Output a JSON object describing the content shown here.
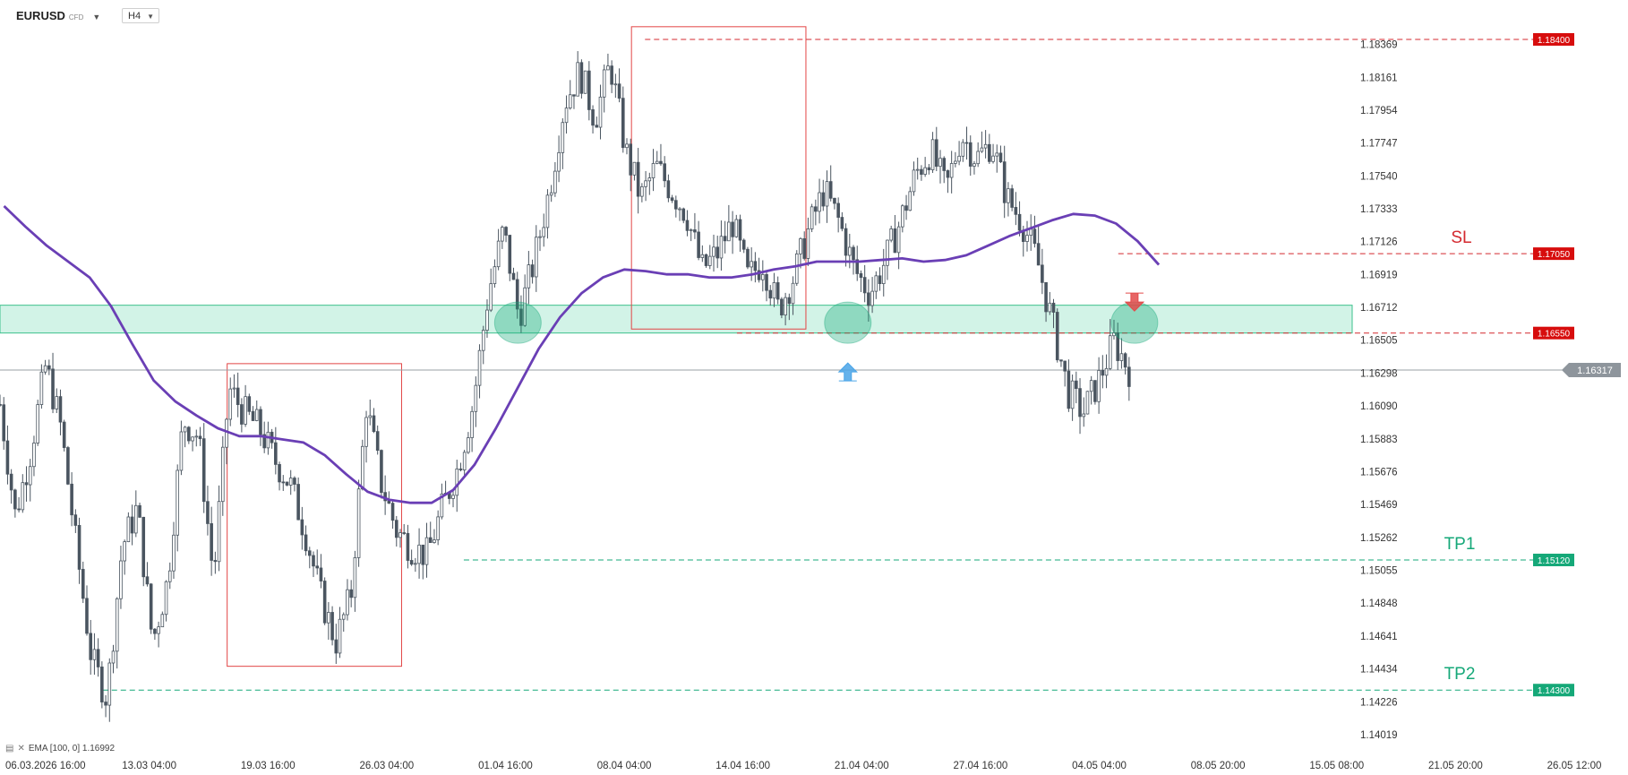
{
  "header": {
    "symbol": "EURUSD",
    "symbol_suffix": "CFD",
    "timeframe": "H4",
    "dropdown_icon": "chevron-down-icon"
  },
  "legend": {
    "icons": [
      "indicator-settings-icon",
      "close-icon"
    ],
    "text": "EMA [100, 0] 1.16992"
  },
  "colors": {
    "ema": "#6a3fb5",
    "candle": "#4a5560",
    "zone_fill": "#bfeedd",
    "zone_border": "#3cc08c",
    "resistance": "#d4292f",
    "target": "#15a878",
    "box": "#e24545",
    "current_price": "#9aa0a6",
    "buy_arrow": "#4aa5e8",
    "sell_arrow": "#e34a4a"
  },
  "chart_data": {
    "type": "candlestick",
    "instrument": "EURUSD",
    "timeframe": "H4",
    "y_ticks": [
      1.18369,
      1.18161,
      1.17954,
      1.17747,
      1.1754,
      1.17333,
      1.17126,
      1.16919,
      1.16712,
      1.16505,
      1.16298,
      1.1609,
      1.15883,
      1.15676,
      1.15469,
      1.15262,
      1.15055,
      1.14848,
      1.14641,
      1.14434,
      1.14226,
      1.14019
    ],
    "x_ticks": [
      "06.03.2026 16:00",
      "13.03 04:00",
      "19.03 16:00",
      "26.03 04:00",
      "01.04 16:00",
      "08.04 04:00",
      "14.04 16:00",
      "21.04 04:00",
      "27.04 16:00",
      "04.05 04:00",
      "08.05 20:00",
      "15.05 08:00",
      "21.05 20:00",
      "26.05 12:00"
    ],
    "ylim": [
      1.14019,
      1.184
    ],
    "current_price": 1.16317,
    "support_zone": [
      1.1655,
      1.1668
    ],
    "levels": [
      {
        "label": "",
        "price": 1.184,
        "kind": "resistance"
      },
      {
        "label": "SL",
        "price": 1.1705,
        "kind": "stop"
      },
      {
        "label": "",
        "price": 1.1655,
        "kind": "resistance"
      },
      {
        "label": "TP1",
        "price": 1.1512,
        "kind": "target"
      },
      {
        "label": "TP2",
        "price": 1.143,
        "kind": "target"
      }
    ],
    "price_tags": [
      "1.18400",
      "1.17050",
      "1.16550",
      "1.15120",
      "1.14300"
    ],
    "current_price_tag": "1.16317",
    "ema_name": "EMA [100, 0]",
    "ema_value": 1.16992,
    "ema": [
      1.1735,
      1.1722,
      1.171,
      1.17,
      1.169,
      1.1672,
      1.1648,
      1.1625,
      1.1612,
      1.1603,
      1.1595,
      1.159,
      1.159,
      1.1588,
      1.1586,
      1.1578,
      1.1566,
      1.1555,
      1.155,
      1.1548,
      1.1548,
      1.1556,
      1.1572,
      1.1595,
      1.162,
      1.1645,
      1.1665,
      1.168,
      1.169,
      1.1695,
      1.1694,
      1.1692,
      1.1692,
      1.169,
      1.169,
      1.1692,
      1.1695,
      1.1697,
      1.17,
      1.17,
      1.17,
      1.1701,
      1.1702,
      1.17,
      1.1701,
      1.1704,
      1.171,
      1.1716,
      1.1721,
      1.1726,
      1.173,
      1.1729,
      1.1724,
      1.1713,
      1.1698
    ],
    "rectangles": [
      {
        "t0": 0.168,
        "t1": 0.297,
        "p0": 1.16357,
        "p1": 1.1445
      },
      {
        "t0": 0.467,
        "t1": 0.596,
        "p0": 1.1848,
        "p1": 1.16575
      }
    ],
    "circles": [
      {
        "t": 0.383,
        "p": 1.16615,
        "r": 0.0029
      },
      {
        "t": 0.627,
        "p": 1.16615,
        "r": 0.0029
      },
      {
        "t": 0.839,
        "p": 1.16615,
        "r": 0.0029
      }
    ],
    "arrows": [
      {
        "t": 0.627,
        "p": 1.16305,
        "dir": "up"
      },
      {
        "t": 0.839,
        "p": 1.16745,
        "dir": "down"
      }
    ],
    "close_path": [
      1.161,
      1.154,
      1.158,
      1.1635,
      1.1595,
      1.152,
      1.145,
      1.1425,
      1.152,
      1.1545,
      1.146,
      1.15,
      1.16,
      1.159,
      1.15,
      1.162,
      1.1605,
      1.1595,
      1.1575,
      1.156,
      1.153,
      1.149,
      1.146,
      1.149,
      1.161,
      1.156,
      1.153,
      1.152,
      1.1515,
      1.1545,
      1.157,
      1.161,
      1.168,
      1.172,
      1.1665,
      1.17,
      1.1745,
      1.18,
      1.182,
      1.179,
      1.1825,
      1.177,
      1.174,
      1.176,
      1.1745,
      1.173,
      1.1695,
      1.1705,
      1.1725,
      1.169,
      1.17,
      1.167,
      1.169,
      1.172,
      1.1745,
      1.1725,
      1.1695,
      1.168,
      1.17,
      1.1725,
      1.1755,
      1.177,
      1.1745,
      1.178,
      1.1765,
      1.1775,
      1.174,
      1.1725,
      1.17,
      1.166,
      1.1618,
      1.1605,
      1.1625,
      1.165,
      1.1632
    ]
  }
}
